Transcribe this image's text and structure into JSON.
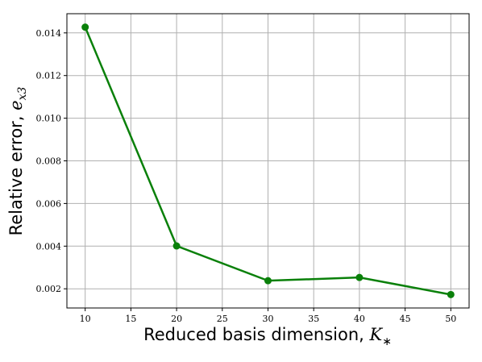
{
  "chart_data": {
    "type": "line",
    "xlabel": "Reduced basis dimension, ",
    "xlabel_math": {
      "base": "K",
      "sub": "∗"
    },
    "ylabel": "Relative error, ",
    "ylabel_math": {
      "base": "e",
      "sub": "x3"
    },
    "x": [
      10,
      20,
      30,
      40,
      50
    ],
    "series": [
      {
        "name": "Relative error",
        "color": "#0a800a",
        "values": [
          0.01427,
          0.00401,
          0.00238,
          0.00253,
          0.00173
        ]
      }
    ],
    "xlim": [
      8,
      52
    ],
    "xticks": [
      10,
      15,
      20,
      25,
      30,
      35,
      40,
      45,
      50
    ],
    "ylim": [
      0.0011,
      0.0149
    ],
    "yticks": [
      0.002,
      0.004,
      0.006,
      0.008,
      {
        "value": 0.01,
        "label": "0.010"
      },
      0.012,
      0.014
    ],
    "grid": true
  }
}
